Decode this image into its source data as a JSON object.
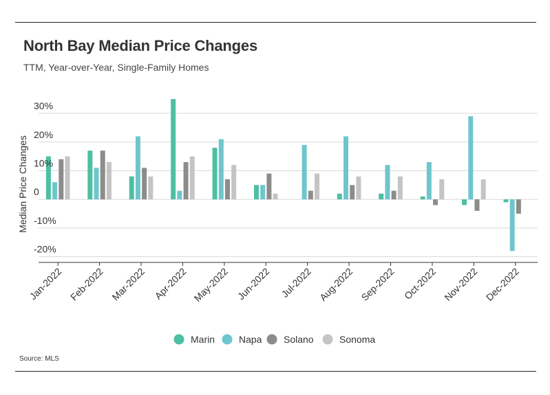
{
  "chart_data": {
    "type": "bar",
    "title": "North Bay Median Price Changes",
    "subtitle": "TTM, Year-over-Year, Single-Family Homes",
    "source": "Source: MLS",
    "ylabel": "Median Price Changes",
    "xlabel": "",
    "ylim": [
      -22,
      36
    ],
    "yticks": [
      -20,
      -10,
      0,
      10,
      20,
      30
    ],
    "ytick_labels": [
      "-20%",
      "-10%",
      "0",
      "10%",
      "20%",
      "30%"
    ],
    "grid": true,
    "legend_position": "bottom",
    "categories": [
      "Jan-2022",
      "Feb-2022",
      "Mar-2022",
      "Apr-2022",
      "May-2022",
      "Jun-2022",
      "Jul-2022",
      "Aug-2022",
      "Sep-2022",
      "Oct-2022",
      "Nov-2022",
      "Dec-2022"
    ],
    "series": [
      {
        "name": "Marin",
        "color": "#4dbfa3",
        "values": [
          15,
          17,
          8,
          35,
          18,
          5,
          0,
          2,
          2,
          1,
          -2,
          -1
        ]
      },
      {
        "name": "Napa",
        "color": "#6ec6cc",
        "values": [
          6,
          11,
          22,
          3,
          21,
          5,
          19,
          22,
          12,
          13,
          29,
          -18
        ]
      },
      {
        "name": "Solano",
        "color": "#8c8c8c",
        "values": [
          14,
          17,
          11,
          13,
          7,
          9,
          3,
          5,
          3,
          -2,
          -4,
          -5
        ]
      },
      {
        "name": "Sonoma",
        "color": "#c4c4c4",
        "values": [
          15,
          13,
          8,
          15,
          12,
          2,
          9,
          8,
          8,
          7,
          7,
          0
        ]
      }
    ]
  }
}
